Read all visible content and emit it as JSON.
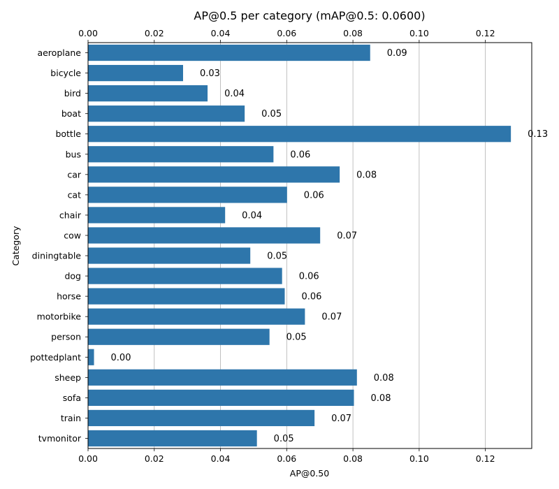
{
  "chart_data": {
    "type": "bar",
    "orientation": "horizontal",
    "title": "AP@0.5 per category (mAP@0.5: 0.0600)",
    "xlabel": "AP@0.50",
    "ylabel": "Category",
    "xlim": [
      0,
      0.134
    ],
    "xticks": [
      "0.00",
      "0.02",
      "0.04",
      "0.06",
      "0.08",
      "0.10",
      "0.12"
    ],
    "grid": "vertical",
    "bar_color": "#2e76ab",
    "categories": [
      "aeroplane",
      "bicycle",
      "bird",
      "boat",
      "bottle",
      "bus",
      "car",
      "cat",
      "chair",
      "cow",
      "diningtable",
      "dog",
      "horse",
      "motorbike",
      "person",
      "pottedplant",
      "sheep",
      "sofa",
      "train",
      "tvmonitor"
    ],
    "values": [
      0.0852,
      0.0287,
      0.0361,
      0.0473,
      0.1277,
      0.056,
      0.076,
      0.0601,
      0.0414,
      0.0701,
      0.049,
      0.0586,
      0.0594,
      0.0655,
      0.0548,
      0.0018,
      0.0812,
      0.0803,
      0.0684,
      0.051
    ],
    "data_labels": [
      "0.09",
      "0.03",
      "0.04",
      "0.05",
      "0.13",
      "0.06",
      "0.08",
      "0.06",
      "0.04",
      "0.07",
      "0.05",
      "0.06",
      "0.06",
      "0.07",
      "0.05",
      "0.00",
      "0.08",
      "0.08",
      "0.07",
      "0.05"
    ]
  }
}
